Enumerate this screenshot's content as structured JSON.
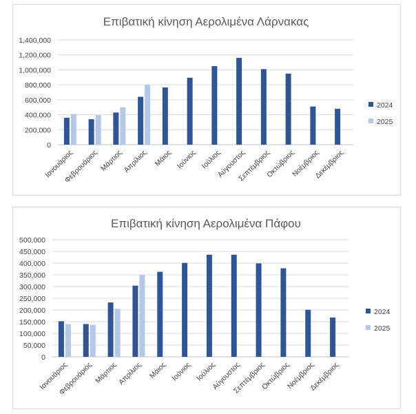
{
  "chart_data": [
    {
      "type": "bar",
      "title": "Επιβατική κίνηση Αερολιμένα Λάρνακας",
      "xlabel": "",
      "ylabel": "",
      "ylim": [
        0,
        1400000
      ],
      "yticks": [
        "0",
        "200,000",
        "400,000",
        "600,000",
        "800,000",
        "1,000,000",
        "1,200,000",
        "1,400,000"
      ],
      "grid": true,
      "legend_position": "right",
      "categories": [
        "Ιανουάριος",
        "Φεβρουάριος",
        "Μάρτιος",
        "Απρίλιος",
        "Μάιος",
        "Ιούνιος",
        "Ιούλιος",
        "Αύγουστος",
        "Σεπτέμβριος",
        "Οκτώβριος",
        "Νοέμβριος",
        "Δεκέμβριος"
      ],
      "series": [
        {
          "name": "2024",
          "color": "#2f5597",
          "values": [
            360000,
            340000,
            430000,
            640000,
            765000,
            895000,
            1050000,
            1160000,
            1010000,
            950000,
            510000,
            480000
          ]
        },
        {
          "name": "2025",
          "color": "#b4c7e7",
          "values": [
            410000,
            395000,
            500000,
            800000,
            null,
            null,
            null,
            null,
            null,
            null,
            null,
            null
          ]
        }
      ]
    },
    {
      "type": "bar",
      "title": "Επιβατική κίνηση Αερολιμένα Πάφου",
      "xlabel": "",
      "ylabel": "",
      "ylim": [
        0,
        500000
      ],
      "yticks": [
        "0",
        "50,000",
        "100,000",
        "150,000",
        "200,000",
        "250,000",
        "300,000",
        "350,000",
        "400,000",
        "450,000",
        "500,000"
      ],
      "grid": true,
      "legend_position": "right",
      "categories": [
        "Ιανουάριος",
        "Φεβρουάριος",
        "Μάρτιος",
        "Απρίλιος",
        "Μάιος",
        "Ιούνιος",
        "Ιούλιος",
        "Αύγουστος",
        "Σεπτέμβριος",
        "Οκτώβριος",
        "Νοέμβριος",
        "Δεκέμβριος"
      ],
      "series": [
        {
          "name": "2024",
          "color": "#2f5597",
          "values": [
            152000,
            140000,
            232000,
            304000,
            363000,
            401000,
            436000,
            436000,
            399000,
            378000,
            201000,
            168000
          ]
        },
        {
          "name": "2025",
          "color": "#b4c7e7",
          "values": [
            140000,
            137000,
            205000,
            350000,
            null,
            null,
            null,
            null,
            null,
            null,
            null,
            null
          ]
        }
      ]
    }
  ]
}
